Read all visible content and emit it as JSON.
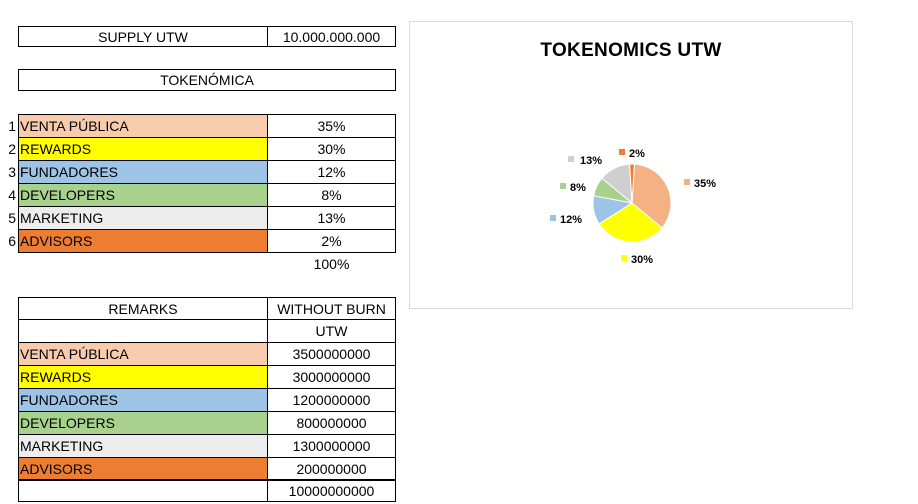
{
  "supply": {
    "label": "SUPPLY UTW",
    "value": "10.000.000.000"
  },
  "tokenomica": {
    "title": "TOKENÓMICA",
    "rows": [
      {
        "num": "1",
        "name": "VENTA PÚBLICA",
        "pct": "35%",
        "color": "#F8CBAD"
      },
      {
        "num": "2",
        "name": "REWARDS",
        "pct": "30%",
        "color": "#FFFF00"
      },
      {
        "num": "3",
        "name": "FUNDADORES",
        "pct": "12%",
        "color": "#9DC3E6"
      },
      {
        "num": "4",
        "name": "DEVELOPERS",
        "pct": "8%",
        "color": "#A9D18E"
      },
      {
        "num": "5",
        "name": "MARKETING",
        "pct": "13%",
        "color": "#EDEDED"
      },
      {
        "num": "6",
        "name": "ADVISORS",
        "pct": "2%",
        "color": "#ED7D31"
      }
    ],
    "total": "100%"
  },
  "remarks": {
    "header_left": "REMARKS",
    "header_right": "WITHOUT BURN",
    "unit": "UTW",
    "rows": [
      {
        "name": "VENTA PÚBLICA",
        "amount": "3500000000",
        "color": "#F8CBAD"
      },
      {
        "name": "REWARDS",
        "amount": "3000000000",
        "color": "#FFFF00"
      },
      {
        "name": "FUNDADORES",
        "amount": "1200000000",
        "color": "#9DC3E6"
      },
      {
        "name": "DEVELOPERS",
        "amount": "800000000",
        "color": "#A9D18E"
      },
      {
        "name": "MARKETING",
        "amount": "1300000000",
        "color": "#EDEDED"
      },
      {
        "name": "ADVISORS",
        "amount": "200000000",
        "color": "#ED7D31"
      }
    ],
    "total": "10000000000"
  },
  "chart_data": {
    "type": "pie",
    "title": "TOKENOMICS  UTW",
    "slices": [
      {
        "value": 35,
        "label": "35%",
        "color": "#F4B183"
      },
      {
        "value": 30,
        "label": "30%",
        "color": "#FFFF00"
      },
      {
        "value": 12,
        "label": "12%",
        "color": "#9DC3E6"
      },
      {
        "value": 8,
        "label": "8%",
        "color": "#A9D18E"
      },
      {
        "value": 13,
        "label": "13%",
        "color": "#D0CECE"
      },
      {
        "value": 2,
        "label": "2%",
        "color": "#ED7D31"
      }
    ]
  }
}
